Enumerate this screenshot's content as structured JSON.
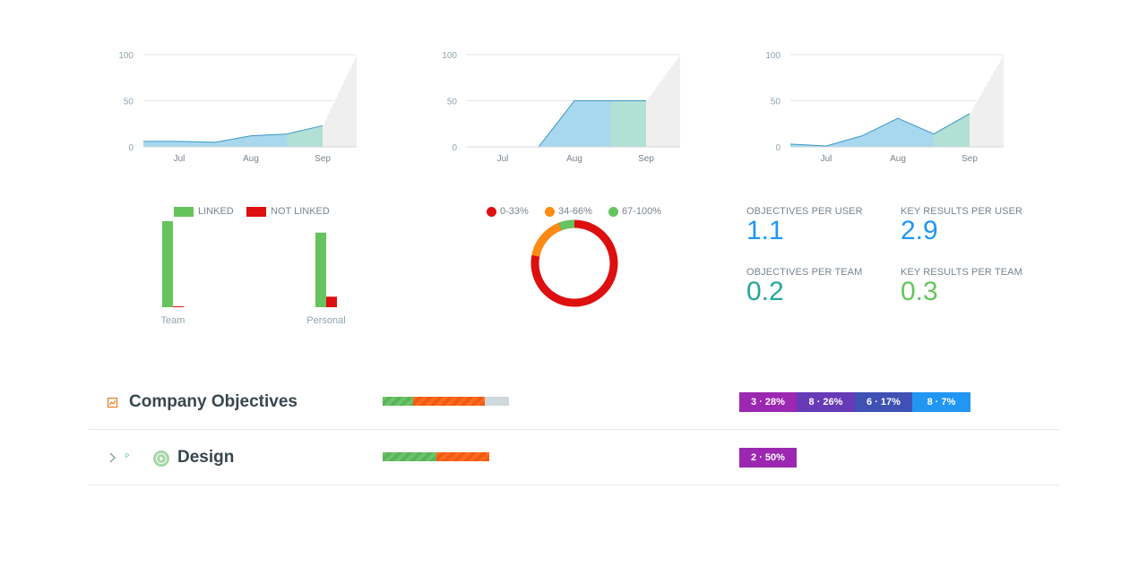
{
  "colors": {
    "area_blue": "#a8d8ee",
    "area_teal": "#b2e0d4",
    "area_forecast": "#efefef",
    "line": "#3a97c6",
    "linked": "#66c45e",
    "not_linked": "#dd0f0f",
    "low": "#dd0f0f",
    "mid": "#ff8a14",
    "high": "#66c45e",
    "blue_value": "#2196f3",
    "teal_value": "#26a69a",
    "green_value": "#66c45e",
    "dist_1": "#9c27b0",
    "dist_2": "#673ab7",
    "dist_3": "#3f51b5",
    "dist_4": "#2196f3",
    "row_icon": "#ef6c00",
    "row_status": "#a5d6a7"
  },
  "chart_data": [
    {
      "type": "area",
      "x": [
        "Jun 15",
        "Jul 1",
        "Jul 15",
        "Aug 1",
        "Aug 15",
        "Sep 1"
      ],
      "values": [
        6,
        6,
        5,
        12,
        14,
        23
      ],
      "forecast_end": 100,
      "yticks": [
        0,
        50,
        100
      ],
      "xticks": [
        "Jul",
        "Aug",
        "Sep"
      ],
      "ylim": [
        0,
        100
      ]
    },
    {
      "type": "area",
      "x": [
        "Jun 15",
        "Jul 1",
        "Jul 15",
        "Aug 1",
        "Aug 15",
        "Sep 1"
      ],
      "values": [
        0,
        0,
        0,
        50,
        50,
        50
      ],
      "forecast_end": 100,
      "yticks": [
        0,
        50,
        100
      ],
      "xticks": [
        "Jul",
        "Aug",
        "Sep"
      ],
      "ylim": [
        0,
        100
      ]
    },
    {
      "type": "area",
      "x": [
        "Jun 15",
        "Jul 1",
        "Jul 15",
        "Aug 1",
        "Aug 15",
        "Sep 1"
      ],
      "values": [
        3,
        1,
        12,
        31,
        14,
        36
      ],
      "forecast_end": 100,
      "yticks": [
        0,
        50,
        100
      ],
      "xticks": [
        "Jul",
        "Aug",
        "Sep"
      ],
      "ylim": [
        0,
        100
      ]
    },
    {
      "type": "bar",
      "categories": [
        "Team",
        "Personal"
      ],
      "series": [
        {
          "name": "LINKED",
          "values": [
            98,
            85
          ]
        },
        {
          "name": "NOT LINKED",
          "values": [
            1,
            12
          ]
        }
      ],
      "ylim": [
        0,
        100
      ]
    },
    {
      "type": "pie",
      "donut": true,
      "labels": [
        "0-33%",
        "34-66%",
        "67-100%"
      ],
      "values": [
        78,
        16,
        6
      ]
    }
  ],
  "donut_legend": [
    "0-33%",
    "34-66%",
    "67-100%"
  ],
  "stats": {
    "obj_per_user_label": "OBJECTIVES PER USER",
    "obj_per_user_value": "1.1",
    "kr_per_user_label": "KEY RESULTS PER USER",
    "kr_per_user_value": "2.9",
    "obj_per_team_label": "OBJECTIVES PER TEAM",
    "obj_per_team_value": "0.2",
    "kr_per_team_label": "KEY RESULTS PER TEAM",
    "kr_per_team_value": "0.3"
  },
  "rows": [
    {
      "title": "Company Objectives",
      "icon": "chart-icon",
      "progress": {
        "green": 0.24,
        "orange": 0.57,
        "gray": 0.19
      },
      "distribution": [
        "3 · 28%",
        "8 · 26%",
        "6 · 17%",
        "8 · 7%"
      ]
    },
    {
      "title": "Design",
      "icon": "play-icon",
      "tiny_label": "P",
      "progress": {
        "green": 0.5,
        "orange": 0.5
      },
      "distribution": [
        "2 · 50%"
      ]
    }
  ]
}
